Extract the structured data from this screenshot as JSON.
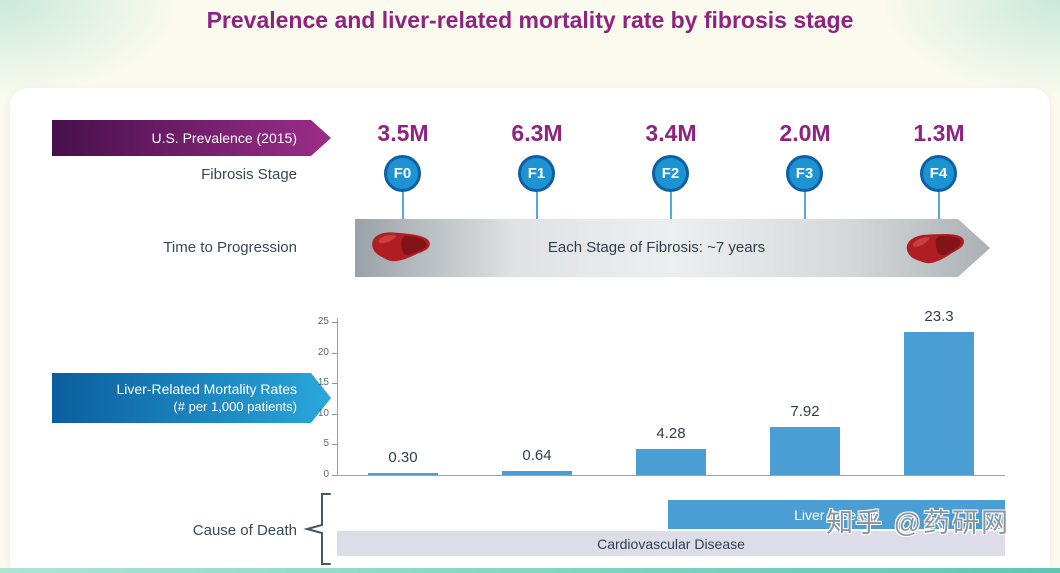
{
  "title": "Prevalence and liver-related mortality rate by fibrosis stage",
  "banners": {
    "prevalence": "U.S. Prevalence (2015)",
    "mortality_line1": "Liver-Related Mortality Rates",
    "mortality_line2": "(# per 1,000 patients)"
  },
  "labels": {
    "fibrosis_stage": "Fibrosis Stage",
    "time_to_progression": "Time to Progression",
    "progression_note": "Each Stage of Fibrosis: ~7 years",
    "cause_of_death": "Cause of Death"
  },
  "cause_of_death_bars": {
    "liver": "Liver Disease",
    "cardiovascular": "Cardiovascular Disease"
  },
  "watermark": "知乎 @药研网",
  "chart_data": {
    "type": "bar",
    "categories": [
      "F0",
      "F1",
      "F2",
      "F3",
      "F4"
    ],
    "series": [
      {
        "name": "U.S. Prevalence (2015)",
        "labels": [
          "3.5M",
          "6.3M",
          "3.4M",
          "2.0M",
          "1.3M"
        ]
      },
      {
        "name": "Liver-Related Mortality Rates (# per 1,000 patients)",
        "values": [
          0.3,
          0.64,
          4.28,
          7.92,
          23.3
        ],
        "labels": [
          "0.30",
          "0.64",
          "4.28",
          "7.92",
          "23.3"
        ]
      }
    ],
    "ylim": [
      0,
      25
    ],
    "yticks": [
      0,
      5,
      10,
      15,
      20,
      25
    ],
    "grid": false,
    "legend_position": "left-banners",
    "bar_color": "#4a9ed3"
  },
  "colors": {
    "title": "#8e2380",
    "purple_banner": [
      "#47104b",
      "#9c2d8a"
    ],
    "blue_banner": [
      "#0b5e9d",
      "#2aa7db"
    ],
    "stage_circle": "#1e93d2",
    "stage_circle_ring": "#0e5fa5",
    "bar": "#4a9ed3",
    "liver_disease_bar": "#4a9ed3",
    "cardiovascular_bar": "#dcdde8",
    "accent_strip": "#5fc6b4"
  }
}
